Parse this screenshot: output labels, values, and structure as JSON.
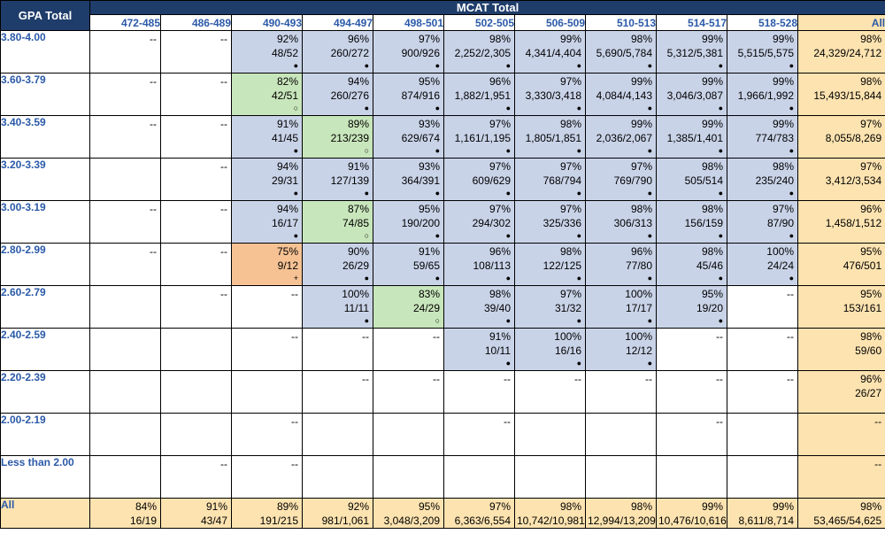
{
  "header": {
    "row_header": "GPA Total",
    "group_header": "MCAT Total"
  },
  "columns": [
    "472-485",
    "486-489",
    "490-493",
    "494-497",
    "498-501",
    "502-505",
    "506-509",
    "510-513",
    "514-517",
    "518-528",
    "All"
  ],
  "rows": [
    {
      "label": "3.80-4.00",
      "cells": [
        {
          "c": "white",
          "p": "--"
        },
        {
          "c": "white",
          "p": "--"
        },
        {
          "c": "blue",
          "p": "92%",
          "r": "48/52",
          "m": "●"
        },
        {
          "c": "blue",
          "p": "96%",
          "r": "260/272",
          "m": "●"
        },
        {
          "c": "blue",
          "p": "97%",
          "r": "900/926",
          "m": "●"
        },
        {
          "c": "blue",
          "p": "98%",
          "r": "2,252/2,305",
          "m": "●"
        },
        {
          "c": "blue",
          "p": "99%",
          "r": "4,341/4,404",
          "m": "●"
        },
        {
          "c": "blue",
          "p": "98%",
          "r": "5,690/5,784",
          "m": "●"
        },
        {
          "c": "blue",
          "p": "99%",
          "r": "5,312/5,381",
          "m": "●"
        },
        {
          "c": "blue",
          "p": "99%",
          "r": "5,515/5,575",
          "m": "●"
        },
        {
          "c": "cream",
          "p": "98%",
          "r": "24,329/24,712"
        }
      ]
    },
    {
      "label": "3.60-3.79",
      "cells": [
        {
          "c": "white",
          "p": "--"
        },
        {
          "c": "white",
          "p": "--"
        },
        {
          "c": "green",
          "p": "82%",
          "r": "42/51",
          "m": "○"
        },
        {
          "c": "blue",
          "p": "94%",
          "r": "260/276",
          "m": "●"
        },
        {
          "c": "blue",
          "p": "95%",
          "r": "874/916",
          "m": "●"
        },
        {
          "c": "blue",
          "p": "96%",
          "r": "1,882/1,951",
          "m": "●"
        },
        {
          "c": "blue",
          "p": "97%",
          "r": "3,330/3,418",
          "m": "●"
        },
        {
          "c": "blue",
          "p": "99%",
          "r": "4,084/4,143",
          "m": "●"
        },
        {
          "c": "blue",
          "p": "99%",
          "r": "3,046/3,087",
          "m": "●"
        },
        {
          "c": "blue",
          "p": "99%",
          "r": "1,966/1,992",
          "m": "●"
        },
        {
          "c": "cream",
          "p": "98%",
          "r": "15,493/15,844"
        }
      ]
    },
    {
      "label": "3.40-3.59",
      "cells": [
        {
          "c": "white",
          "p": "--"
        },
        {
          "c": "white",
          "p": "--"
        },
        {
          "c": "blue",
          "p": "91%",
          "r": "41/45",
          "m": "●"
        },
        {
          "c": "green",
          "p": "89%",
          "r": "213/239",
          "m": "○"
        },
        {
          "c": "blue",
          "p": "93%",
          "r": "629/674",
          "m": "●"
        },
        {
          "c": "blue",
          "p": "97%",
          "r": "1,161/1,195",
          "m": "●"
        },
        {
          "c": "blue",
          "p": "98%",
          "r": "1,805/1,851",
          "m": "●"
        },
        {
          "c": "blue",
          "p": "99%",
          "r": "2,036/2,067",
          "m": "●"
        },
        {
          "c": "blue",
          "p": "99%",
          "r": "1,385/1,401",
          "m": "●"
        },
        {
          "c": "blue",
          "p": "99%",
          "r": "774/783",
          "m": "●"
        },
        {
          "c": "cream",
          "p": "97%",
          "r": "8,055/8,269"
        }
      ]
    },
    {
      "label": "3.20-3.39",
      "cells": [
        {
          "c": "white",
          "p": ""
        },
        {
          "c": "white",
          "p": "--"
        },
        {
          "c": "blue",
          "p": "94%",
          "r": "29/31",
          "m": "●"
        },
        {
          "c": "blue",
          "p": "91%",
          "r": "127/139",
          "m": "●"
        },
        {
          "c": "blue",
          "p": "93%",
          "r": "364/391",
          "m": "●"
        },
        {
          "c": "blue",
          "p": "97%",
          "r": "609/629",
          "m": "●"
        },
        {
          "c": "blue",
          "p": "97%",
          "r": "768/794",
          "m": "●"
        },
        {
          "c": "blue",
          "p": "97%",
          "r": "769/790",
          "m": "●"
        },
        {
          "c": "blue",
          "p": "98%",
          "r": "505/514",
          "m": "●"
        },
        {
          "c": "blue",
          "p": "98%",
          "r": "235/240",
          "m": "●"
        },
        {
          "c": "cream",
          "p": "97%",
          "r": "3,412/3,534"
        }
      ]
    },
    {
      "label": "3.00-3.19",
      "cells": [
        {
          "c": "white",
          "p": "--"
        },
        {
          "c": "white",
          "p": "--"
        },
        {
          "c": "blue",
          "p": "94%",
          "r": "16/17",
          "m": "●"
        },
        {
          "c": "green",
          "p": "87%",
          "r": "74/85",
          "m": "○"
        },
        {
          "c": "blue",
          "p": "95%",
          "r": "190/200",
          "m": "●"
        },
        {
          "c": "blue",
          "p": "97%",
          "r": "294/302",
          "m": "●"
        },
        {
          "c": "blue",
          "p": "97%",
          "r": "325/336",
          "m": "●"
        },
        {
          "c": "blue",
          "p": "98%",
          "r": "306/313",
          "m": "●"
        },
        {
          "c": "blue",
          "p": "98%",
          "r": "156/159",
          "m": "●"
        },
        {
          "c": "blue",
          "p": "97%",
          "r": "87/90",
          "m": "●"
        },
        {
          "c": "cream",
          "p": "96%",
          "r": "1,458/1,512"
        }
      ]
    },
    {
      "label": "2.80-2.99",
      "cells": [
        {
          "c": "white",
          "p": "--"
        },
        {
          "c": "white",
          "p": "--"
        },
        {
          "c": "orange",
          "p": "75%",
          "r": "9/12",
          "m": "+"
        },
        {
          "c": "blue",
          "p": "90%",
          "r": "26/29",
          "m": "●"
        },
        {
          "c": "blue",
          "p": "91%",
          "r": "59/65",
          "m": "●"
        },
        {
          "c": "blue",
          "p": "96%",
          "r": "108/113",
          "m": "●"
        },
        {
          "c": "blue",
          "p": "98%",
          "r": "122/125",
          "m": "●"
        },
        {
          "c": "blue",
          "p": "96%",
          "r": "77/80",
          "m": "●"
        },
        {
          "c": "blue",
          "p": "98%",
          "r": "45/46",
          "m": "●"
        },
        {
          "c": "blue",
          "p": "100%",
          "r": "24/24",
          "m": "●"
        },
        {
          "c": "cream",
          "p": "95%",
          "r": "476/501"
        }
      ]
    },
    {
      "label": "2.60-2.79",
      "cells": [
        {
          "c": "white",
          "p": ""
        },
        {
          "c": "white",
          "p": "--"
        },
        {
          "c": "white",
          "p": "--"
        },
        {
          "c": "blue",
          "p": "100%",
          "r": "11/11",
          "m": "●"
        },
        {
          "c": "green",
          "p": "83%",
          "r": "24/29",
          "m": "○"
        },
        {
          "c": "blue",
          "p": "98%",
          "r": "39/40",
          "m": "●"
        },
        {
          "c": "blue",
          "p": "97%",
          "r": "31/32",
          "m": "●"
        },
        {
          "c": "blue",
          "p": "100%",
          "r": "17/17",
          "m": "●"
        },
        {
          "c": "blue",
          "p": "95%",
          "r": "19/20",
          "m": "●"
        },
        {
          "c": "white",
          "p": "--"
        },
        {
          "c": "cream",
          "p": "95%",
          "r": "153/161"
        }
      ]
    },
    {
      "label": "2.40-2.59",
      "cells": [
        {
          "c": "white",
          "p": ""
        },
        {
          "c": "white",
          "p": ""
        },
        {
          "c": "white",
          "p": "--"
        },
        {
          "c": "white",
          "p": "--"
        },
        {
          "c": "white",
          "p": "--"
        },
        {
          "c": "blue",
          "p": "91%",
          "r": "10/11",
          "m": "●"
        },
        {
          "c": "blue",
          "p": "100%",
          "r": "16/16",
          "m": "●"
        },
        {
          "c": "blue",
          "p": "100%",
          "r": "12/12",
          "m": "●"
        },
        {
          "c": "white",
          "p": "--"
        },
        {
          "c": "white",
          "p": "--"
        },
        {
          "c": "cream",
          "p": "98%",
          "r": "59/60"
        }
      ]
    },
    {
      "label": "2.20-2.39",
      "cells": [
        {
          "c": "white",
          "p": ""
        },
        {
          "c": "white",
          "p": ""
        },
        {
          "c": "white",
          "p": ""
        },
        {
          "c": "white",
          "p": "--"
        },
        {
          "c": "white",
          "p": "--"
        },
        {
          "c": "white",
          "p": "--"
        },
        {
          "c": "white",
          "p": "--"
        },
        {
          "c": "white",
          "p": "--"
        },
        {
          "c": "white",
          "p": "--"
        },
        {
          "c": "white",
          "p": "--"
        },
        {
          "c": "cream",
          "p": "96%",
          "r": "26/27"
        }
      ]
    },
    {
      "label": "2.00-2.19",
      "cells": [
        {
          "c": "white",
          "p": ""
        },
        {
          "c": "white",
          "p": ""
        },
        {
          "c": "white",
          "p": "--"
        },
        {
          "c": "white",
          "p": ""
        },
        {
          "c": "white",
          "p": ""
        },
        {
          "c": "white",
          "p": "--"
        },
        {
          "c": "white",
          "p": ""
        },
        {
          "c": "white",
          "p": ""
        },
        {
          "c": "white",
          "p": "--"
        },
        {
          "c": "white",
          "p": ""
        },
        {
          "c": "cream",
          "p": "--"
        }
      ]
    },
    {
      "label": "Less than 2.00",
      "cells": [
        {
          "c": "white",
          "p": ""
        },
        {
          "c": "white",
          "p": "--"
        },
        {
          "c": "white",
          "p": "--"
        },
        {
          "c": "white",
          "p": ""
        },
        {
          "c": "white",
          "p": ""
        },
        {
          "c": "white",
          "p": ""
        },
        {
          "c": "white",
          "p": ""
        },
        {
          "c": "white",
          "p": ""
        },
        {
          "c": "white",
          "p": ""
        },
        {
          "c": "white",
          "p": ""
        },
        {
          "c": "cream",
          "p": "--"
        }
      ]
    }
  ],
  "total_row": {
    "label": "All",
    "cells": [
      {
        "c": "cream",
        "p": "84%",
        "r": "16/19"
      },
      {
        "c": "cream",
        "p": "91%",
        "r": "43/47"
      },
      {
        "c": "cream",
        "p": "89%",
        "r": "191/215"
      },
      {
        "c": "cream",
        "p": "92%",
        "r": "981/1,061"
      },
      {
        "c": "cream",
        "p": "95%",
        "r": "3,048/3,209"
      },
      {
        "c": "cream",
        "p": "97%",
        "r": "6,363/6,554"
      },
      {
        "c": "cream",
        "p": "98%",
        "r": "10,742/10,981"
      },
      {
        "c": "cream",
        "p": "98%",
        "r": "12,994/13,209"
      },
      {
        "c": "cream",
        "p": "99%",
        "r": "10,476/10,616"
      },
      {
        "c": "cream",
        "p": "99%",
        "r": "8,611/8,714"
      },
      {
        "c": "cream",
        "p": "98%",
        "r": "53,465/54,625"
      }
    ]
  },
  "colors": {
    "header_bg": "#1f3d6b",
    "label_blue": "#2b5aa8",
    "blue_cell": "#c9d3e8",
    "green_cell": "#c8e6bb",
    "orange_cell": "#f6c294",
    "cream_cell": "#fde3b0"
  }
}
